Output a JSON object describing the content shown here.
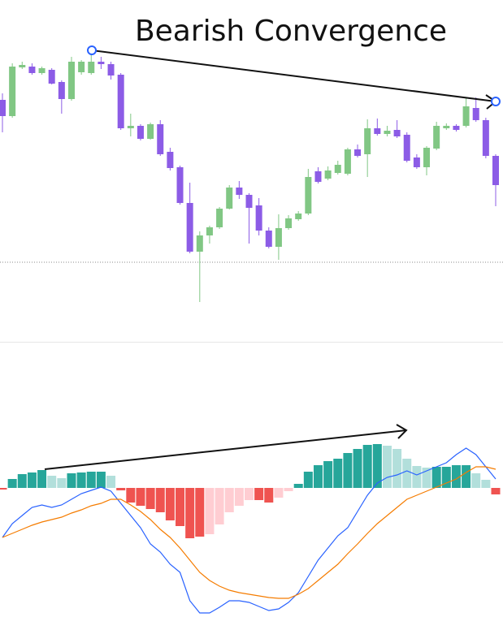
{
  "chart_data": [
    {
      "type": "candlestick",
      "title": "Bearish Convergence",
      "open": [
        297,
        277,
        337,
        338,
        330,
        334,
        319,
        298,
        331,
        330,
        344,
        341,
        328,
        262,
        265,
        249,
        267,
        233,
        214,
        170,
        110,
        130,
        140,
        163,
        189,
        180,
        167,
        136,
        116,
        139,
        150,
        157,
        209,
        200,
        207,
        206,
        236,
        230,
        262,
        255,
        260,
        254,
        226,
        214,
        237,
        262,
        265,
        265,
        287,
        272,
        228
      ],
      "high": [
        305,
        342,
        344,
        342,
        338,
        336,
        321,
        350,
        346,
        358,
        350,
        344,
        330,
        280,
        267,
        269,
        272,
        238,
        216,
        195,
        135,
        142,
        165,
        192,
        197,
        182,
        176,
        140,
        156,
        155,
        160,
        212,
        214,
        215,
        222,
        238,
        242,
        273,
        274,
        265,
        272,
        257,
        230,
        240,
        270,
        268,
        267,
        300,
        300,
        275,
        230
      ],
      "low": [
        257,
        275,
        335,
        328,
        328,
        316,
        280,
        296,
        328,
        328,
        335,
        322,
        260,
        252,
        247,
        248,
        228,
        210,
        168,
        108,
        48,
        120,
        138,
        162,
        175,
        120,
        130,
        114,
        100,
        137,
        148,
        155,
        194,
        198,
        205,
        204,
        226,
        202,
        253,
        252,
        250,
        220,
        212,
        204,
        235,
        260,
        258,
        263,
        270,
        225,
        166
      ],
      "close": [
        277,
        338,
        340,
        330,
        336,
        317,
        298,
        344,
        344,
        344,
        341,
        327,
        262,
        265,
        249,
        267,
        230,
        213,
        170,
        110,
        130,
        140,
        163,
        189,
        180,
        164,
        136,
        116,
        139,
        151,
        157,
        202,
        196,
        210,
        217,
        236,
        228,
        262,
        255,
        259,
        252,
        222,
        214,
        238,
        265,
        265,
        260,
        289,
        272,
        228,
        192
      ],
      "ylim": [
        0,
        420
      ],
      "up_color": "#81c784",
      "down_color": "#8c5ce6"
    },
    {
      "type": "macd",
      "histogram": {
        "values": [
          -2,
          11,
          17,
          19,
          22,
          15,
          12,
          18,
          19,
          20,
          20,
          15,
          -3,
          -18,
          -22,
          -26,
          -30,
          -40,
          -47,
          -62,
          -60,
          -57,
          -45,
          -30,
          -22,
          -15,
          -15,
          -18,
          -12,
          -4,
          5,
          20,
          28,
          33,
          36,
          43,
          48,
          53,
          54,
          52,
          48,
          36,
          27,
          25,
          26,
          26,
          28,
          28,
          18,
          10,
          -8
        ],
        "colors": [
          "#ef5350",
          "#26a69a",
          "#26a69a",
          "#26a69a",
          "#26a69a",
          "#b2dfdb",
          "#b2dfdb",
          "#26a69a",
          "#26a69a",
          "#26a69a",
          "#26a69a",
          "#b2dfdb",
          "#ef5350",
          "#ef5350",
          "#ef5350",
          "#ef5350",
          "#ef5350",
          "#ef5350",
          "#ef5350",
          "#ef5350",
          "#ef5350",
          "#ffcdd2",
          "#ffcdd2",
          "#ffcdd2",
          "#ffcdd2",
          "#ffcdd2",
          "#ef5350",
          "#ef5350",
          "#ffcdd2",
          "#ffcdd2",
          "#26a69a",
          "#26a69a",
          "#26a69a",
          "#26a69a",
          "#26a69a",
          "#26a69a",
          "#26a69a",
          "#26a69a",
          "#26a69a",
          "#b2dfdb",
          "#b2dfdb",
          "#b2dfdb",
          "#b2dfdb",
          "#b2dfdb",
          "#26a69a",
          "#26a69a",
          "#26a69a",
          "#26a69a",
          "#b2dfdb",
          "#b2dfdb",
          "#ef5350"
        ]
      },
      "lines": [
        {
          "color": "#2962ff",
          "values": [
            -61,
            -44,
            -34,
            -24,
            -21,
            -24,
            -21,
            -14,
            -7,
            -3,
            1,
            -4,
            -19,
            -34,
            -49,
            -69,
            -79,
            -94,
            -104,
            -139,
            -154,
            -154,
            -147,
            -139,
            -139,
            -141,
            -146,
            -151,
            -149,
            -141,
            -129,
            -109,
            -89,
            -74,
            -59,
            -49,
            -29,
            -9,
            6,
            13,
            16,
            21,
            16,
            21,
            26,
            31,
            41,
            49,
            41,
            26,
            11
          ]
        },
        {
          "color": "#f57c00",
          "values": [
            -61,
            -56,
            -51,
            -46,
            -42,
            -39,
            -36,
            -31,
            -27,
            -22,
            -19,
            -14,
            -14,
            -21,
            -29,
            -39,
            -51,
            -61,
            -74,
            -89,
            -104,
            -114,
            -121,
            -126,
            -129,
            -131,
            -133,
            -135,
            -136,
            -136,
            -131,
            -124,
            -114,
            -104,
            -94,
            -81,
            -69,
            -56,
            -44,
            -34,
            -24,
            -14,
            -9,
            -4,
            1,
            6,
            11,
            19,
            26,
            26,
            23
          ]
        }
      ],
      "ylim": [
        -159,
        180
      ]
    }
  ]
}
